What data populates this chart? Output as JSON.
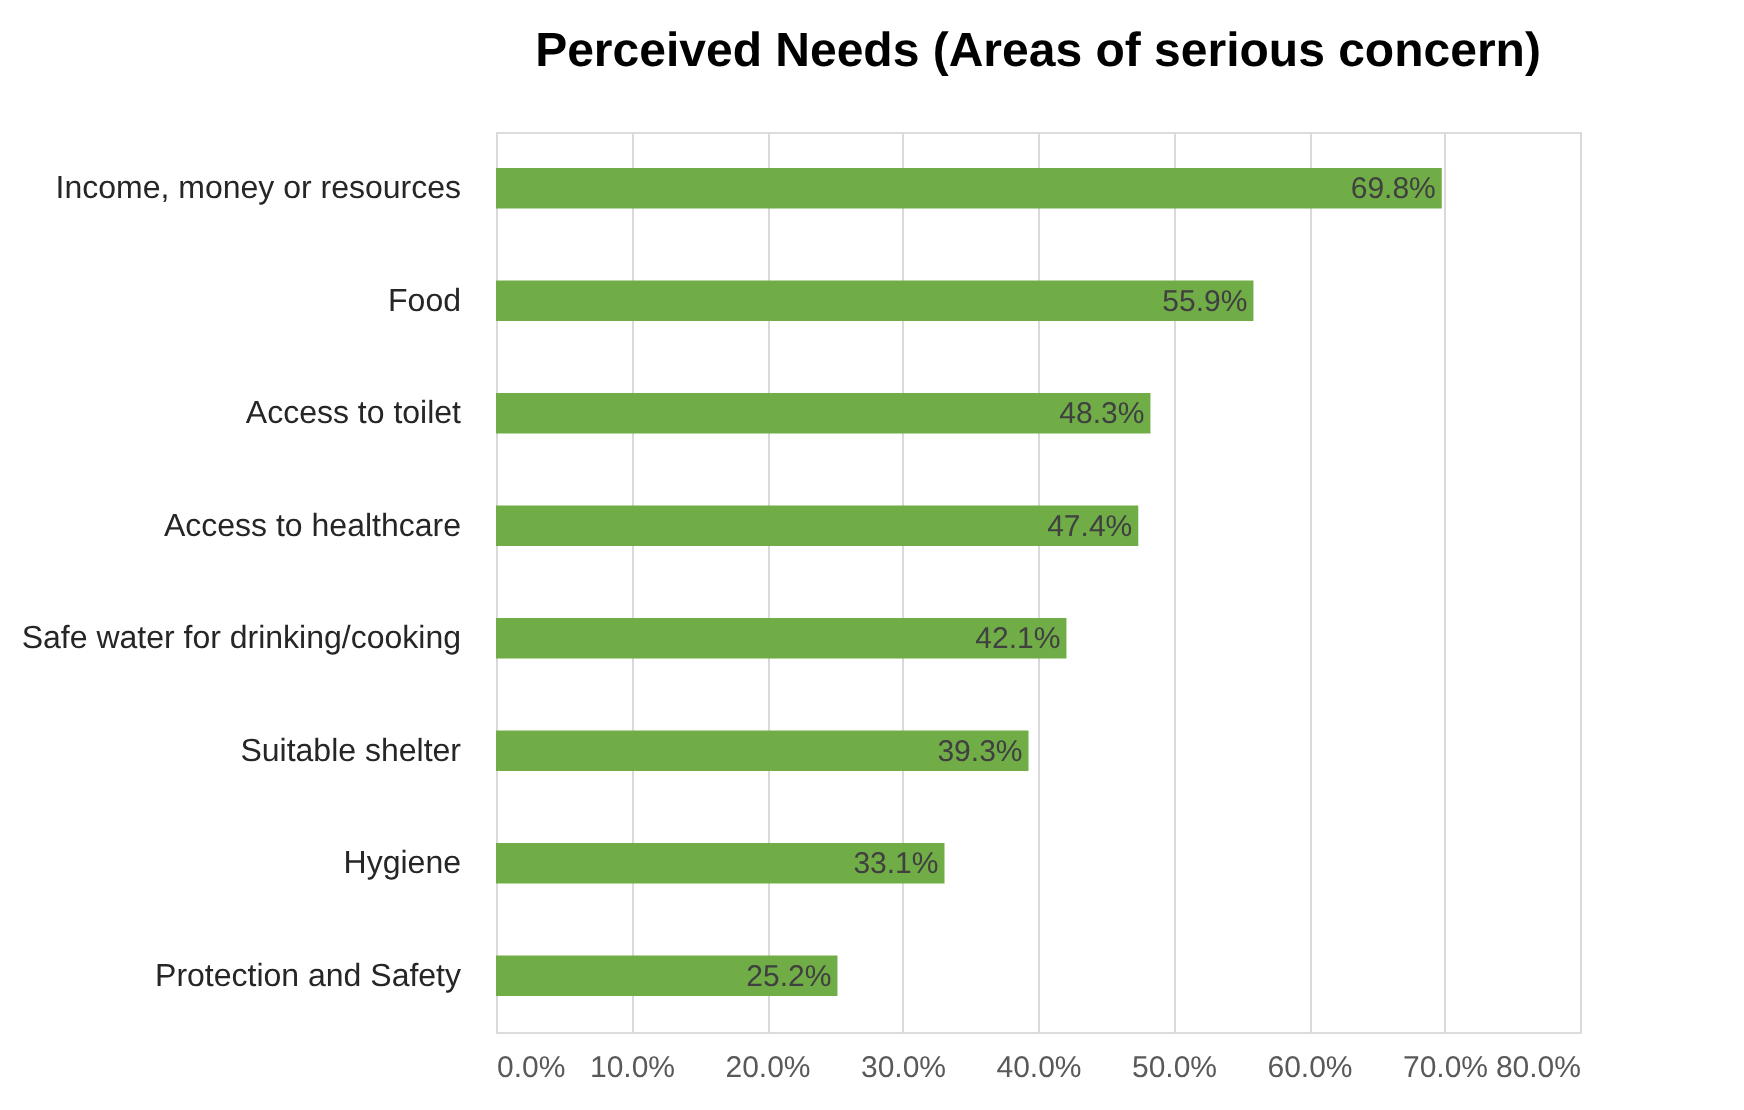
{
  "chart_data": {
    "type": "bar",
    "orientation": "horizontal",
    "title": "Perceived Needs (Areas of serious concern)",
    "categories": [
      "Income, money or resources",
      "Food",
      "Access to toilet",
      "Access to healthcare",
      "Safe water for drinking/cooking",
      "Suitable shelter",
      "Hygiene",
      "Protection and Safety"
    ],
    "values": [
      69.8,
      55.9,
      48.3,
      47.4,
      42.1,
      39.3,
      33.1,
      25.2
    ],
    "value_labels": [
      "69.8%",
      "55.9%",
      "48.3%",
      "47.4%",
      "42.1%",
      "39.3%",
      "33.1%",
      "25.2%"
    ],
    "color": "#70ad47",
    "xlim": [
      0,
      80
    ],
    "xticks": [
      {
        "value": 0,
        "label": "0.0%"
      },
      {
        "value": 10,
        "label": "10.0%"
      },
      {
        "value": 20,
        "label": "20.0%"
      },
      {
        "value": 30,
        "label": "30.0%"
      },
      {
        "value": 40,
        "label": "40.0%"
      },
      {
        "value": 50,
        "label": "50.0%"
      },
      {
        "value": 60,
        "label": "60.0%"
      },
      {
        "value": 70,
        "label": "70.0%"
      },
      {
        "value": 80,
        "label": "80.0%"
      }
    ],
    "grid": "x"
  }
}
